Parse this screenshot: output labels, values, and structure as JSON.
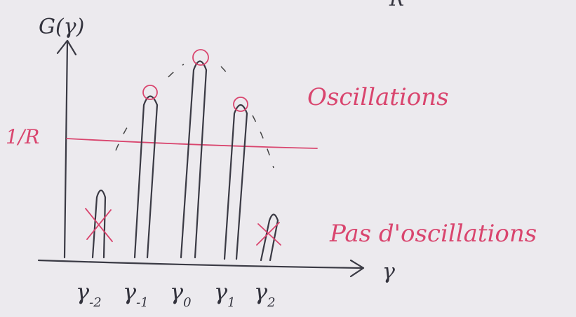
{
  "axes": {
    "y_label": "G(γ)",
    "x_label": "γ",
    "threshold_label": "1/R",
    "top_fragment": "R"
  },
  "annotations": {
    "oscillations": "Oscillations",
    "no_oscillations": "Pas d'oscillations"
  },
  "x_ticks": [
    {
      "symbol": "γ",
      "subscript": "-2"
    },
    {
      "symbol": "γ",
      "subscript": "-1"
    },
    {
      "symbol": "γ",
      "subscript": "0"
    },
    {
      "symbol": "γ",
      "subscript": "1"
    },
    {
      "symbol": "γ",
      "subscript": "2"
    }
  ]
}
